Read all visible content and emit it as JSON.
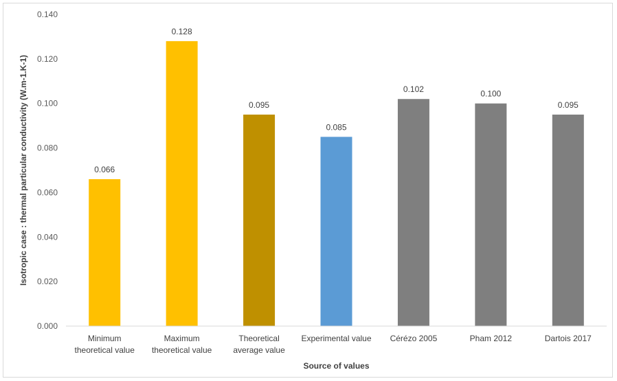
{
  "chart_data": {
    "type": "bar",
    "title": "",
    "xlabel": "Source of values",
    "ylabel": "Isotropic case : thermal particular conductivity (W.m-1.K-1)",
    "ylim": [
      0,
      0.14
    ],
    "yticks": [
      "0.000",
      "0.020",
      "0.040",
      "0.060",
      "0.080",
      "0.100",
      "0.120",
      "0.140"
    ],
    "grid": false,
    "legend": "none",
    "categories": [
      [
        "Minimum",
        "theoretical value"
      ],
      [
        "Maximum",
        "theoretical value"
      ],
      [
        "Theoretical",
        "average value"
      ],
      [
        "Experimental value"
      ],
      [
        "Cérézo 2005"
      ],
      [
        "Pham 2012"
      ],
      [
        "Dartois 2017"
      ]
    ],
    "values": [
      0.066,
      0.128,
      0.095,
      0.085,
      0.102,
      0.1,
      0.095
    ],
    "data_labels": [
      "0.066",
      "0.128",
      "0.095",
      "0.085",
      "0.102",
      "0.100",
      "0.095"
    ],
    "colors": [
      "#FFC000",
      "#FFC000",
      "#BF9000",
      "#5B9BD5",
      "#7F7F7F",
      "#7F7F7F",
      "#7F7F7F"
    ]
  }
}
